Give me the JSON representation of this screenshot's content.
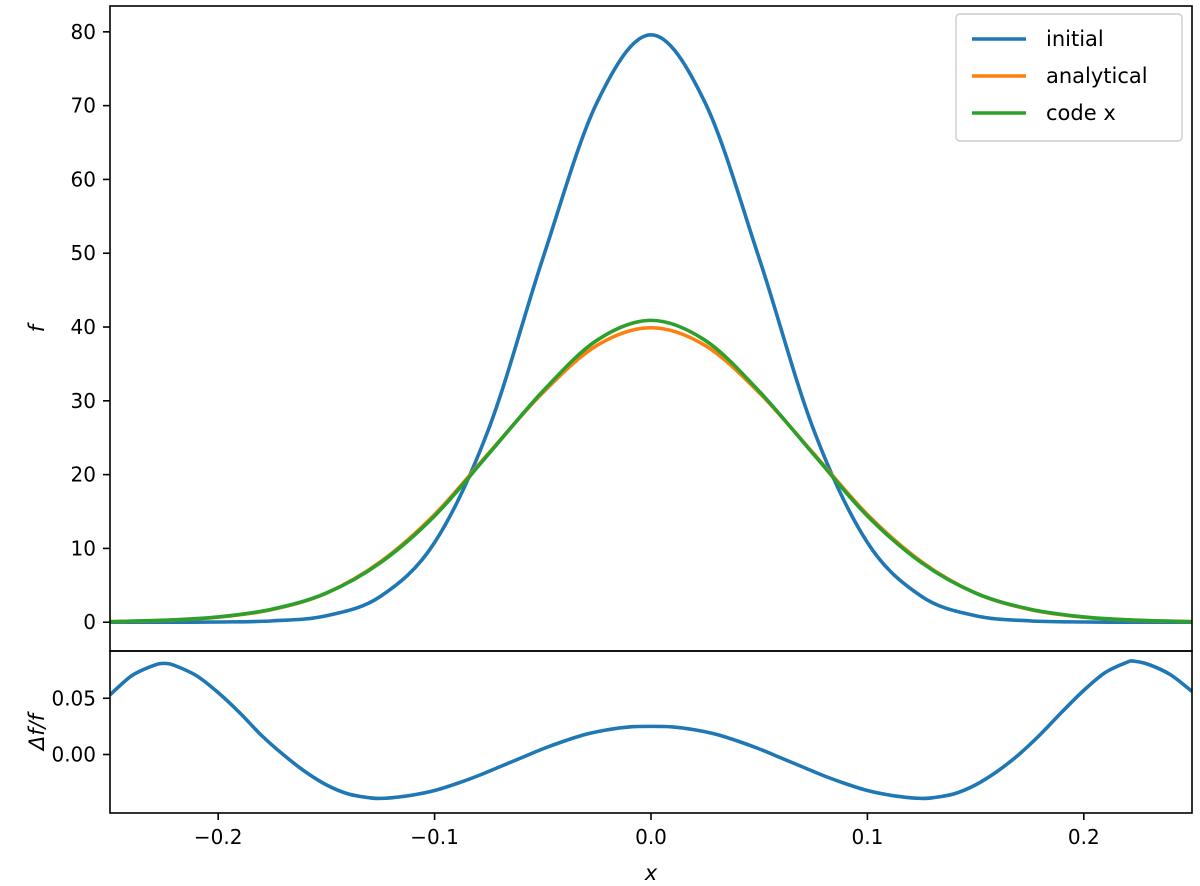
{
  "chart_data": [
    {
      "type": "line",
      "panel": "main",
      "xlabel": "",
      "ylabel": "f",
      "xlim": [
        -0.25,
        0.25
      ],
      "ylim": [
        -3.9,
        83.5
      ],
      "yticks": [
        0,
        10,
        20,
        30,
        40,
        50,
        60,
        70,
        80
      ],
      "ytick_labels": [
        "0",
        "10",
        "20",
        "30",
        "40",
        "50",
        "60",
        "70",
        "80"
      ],
      "grid": false,
      "legend_position": "top-right",
      "series": [
        {
          "name": "initial",
          "color": "#1f77b4",
          "x": [
            -0.25,
            -0.225,
            -0.2,
            -0.175,
            -0.15,
            -0.125,
            -0.1,
            -0.075,
            -0.05,
            -0.025,
            0.0,
            0.025,
            0.05,
            0.075,
            0.1,
            0.125,
            0.15,
            0.175,
            0.2,
            0.225,
            0.25
          ],
          "y": [
            0.0,
            0.0,
            0.03,
            0.18,
            0.88,
            3.5,
            10.8,
            26.2,
            49.3,
            70.4,
            79.6,
            70.4,
            49.3,
            26.2,
            10.8,
            3.5,
            0.88,
            0.18,
            0.03,
            0.0,
            0.0
          ]
        },
        {
          "name": "analytical",
          "color": "#ff7f0e",
          "x": [
            -0.25,
            -0.225,
            -0.2,
            -0.175,
            -0.15,
            -0.125,
            -0.1,
            -0.075,
            -0.05,
            -0.025,
            0.0,
            0.025,
            0.05,
            0.075,
            0.1,
            0.125,
            0.15,
            0.175,
            0.2,
            0.225,
            0.25
          ],
          "y": [
            0.08,
            0.25,
            0.67,
            1.72,
            3.95,
            8.2,
            14.6,
            22.9,
            31.1,
            37.5,
            39.9,
            37.5,
            31.1,
            22.9,
            14.6,
            8.2,
            3.95,
            1.72,
            0.67,
            0.25,
            0.08
          ]
        },
        {
          "name": "code x",
          "color": "#2ca02c",
          "x": [
            -0.25,
            -0.225,
            -0.2,
            -0.175,
            -0.15,
            -0.125,
            -0.1,
            -0.075,
            -0.05,
            -0.025,
            0.0,
            0.025,
            0.05,
            0.075,
            0.1,
            0.125,
            0.15,
            0.175,
            0.2,
            0.225,
            0.25
          ],
          "y": [
            0.08,
            0.27,
            0.72,
            1.78,
            3.95,
            8.07,
            14.4,
            22.8,
            31.3,
            38.2,
            40.9,
            38.2,
            31.3,
            22.8,
            14.4,
            8.07,
            3.95,
            1.78,
            0.72,
            0.27,
            0.08
          ]
        }
      ]
    },
    {
      "type": "line",
      "panel": "residual",
      "xlabel": "x",
      "ylabel": "Δf/f",
      "xlim": [
        -0.25,
        0.25
      ],
      "ylim": [
        -0.052,
        0.092
      ],
      "xticks": [
        -0.2,
        -0.1,
        0.0,
        0.1,
        0.2
      ],
      "xtick_labels": [
        "−0.2",
        "−0.1",
        "0.0",
        "0.1",
        "0.2"
      ],
      "yticks": [
        0.0,
        0.05
      ],
      "ytick_labels": [
        "0.00",
        "0.05"
      ],
      "grid": false,
      "series": [
        {
          "color": "#1f77b4",
          "x": [
            -0.25,
            -0.24,
            -0.23,
            -0.225,
            -0.22,
            -0.21,
            -0.2,
            -0.19,
            -0.18,
            -0.17,
            -0.16,
            -0.15,
            -0.14,
            -0.13,
            -0.125,
            -0.12,
            -0.11,
            -0.1,
            -0.09,
            -0.08,
            -0.07,
            -0.06,
            -0.05,
            -0.04,
            -0.03,
            -0.02,
            -0.01,
            0.0,
            0.01,
            0.02,
            0.03,
            0.04,
            0.05,
            0.06,
            0.07,
            0.08,
            0.09,
            0.1,
            0.11,
            0.12,
            0.125,
            0.13,
            0.14,
            0.15,
            0.16,
            0.17,
            0.18,
            0.19,
            0.2,
            0.21,
            0.22,
            0.223,
            0.23,
            0.24,
            0.25
          ],
          "y": [
            0.053,
            0.07,
            0.079,
            0.081,
            0.079,
            0.07,
            0.055,
            0.037,
            0.017,
            0.0,
            -0.015,
            -0.027,
            -0.035,
            -0.0385,
            -0.039,
            -0.0385,
            -0.036,
            -0.032,
            -0.026,
            -0.019,
            -0.011,
            -0.003,
            0.005,
            0.012,
            0.018,
            0.022,
            0.0245,
            0.025,
            0.0245,
            0.022,
            0.018,
            0.012,
            0.005,
            -0.003,
            -0.011,
            -0.019,
            -0.026,
            -0.032,
            -0.036,
            -0.0385,
            -0.039,
            -0.0385,
            -0.035,
            -0.027,
            -0.015,
            0.0,
            0.018,
            0.038,
            0.057,
            0.073,
            0.082,
            0.083,
            0.08,
            0.071,
            0.056
          ]
        }
      ]
    }
  ]
}
